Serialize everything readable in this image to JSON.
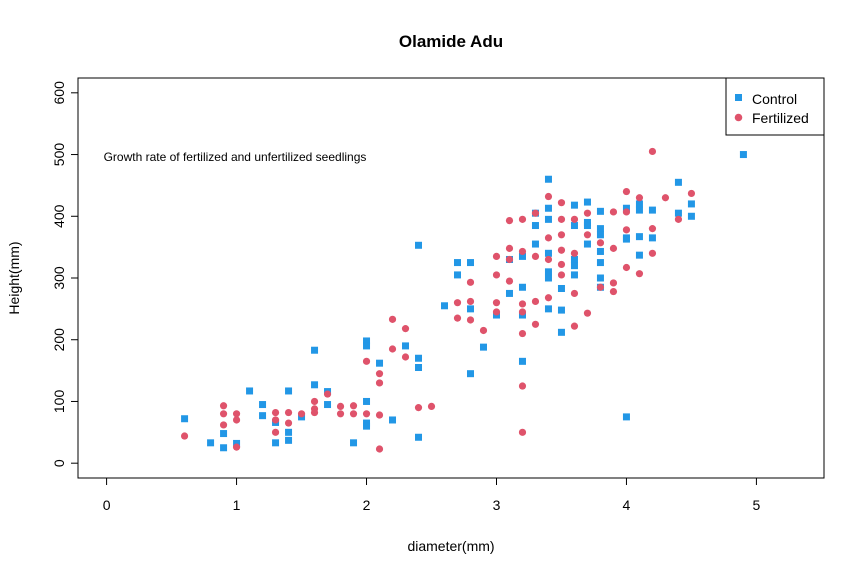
{
  "chart_data": {
    "type": "scatter",
    "title": "Olamide Adu",
    "xlabel": "diameter(mm)",
    "ylabel": "Height(mm)",
    "xlim": [
      -0.22,
      5.52
    ],
    "ylim": [
      -24,
      624
    ],
    "x_ticks": [
      0,
      1,
      2,
      3,
      4,
      5
    ],
    "y_ticks": [
      0,
      100,
      200,
      300,
      400,
      500,
      600
    ],
    "x_tick_labels": [
      "0",
      "1",
      "2",
      "3",
      "4",
      "5"
    ],
    "y_tick_labels": [
      "0",
      "100",
      "200",
      "300",
      "400",
      "500",
      "600"
    ],
    "grid": false,
    "legend_position": "top-right",
    "annotation": {
      "text": "Growth rate of fertilized and unfertilized seedlings",
      "x": 0,
      "y": 496,
      "color": "#DF1D1D"
    },
    "series": [
      {
        "name": "Control",
        "marker": "square",
        "color": "#2297E6",
        "points": [
          [
            0.6,
            72
          ],
          [
            0.8,
            33
          ],
          [
            0.9,
            25
          ],
          [
            0.9,
            48
          ],
          [
            1.0,
            32
          ],
          [
            1.1,
            117
          ],
          [
            1.2,
            95
          ],
          [
            1.2,
            77
          ],
          [
            1.3,
            33
          ],
          [
            1.3,
            66
          ],
          [
            1.4,
            117
          ],
          [
            1.4,
            37
          ],
          [
            1.4,
            50
          ],
          [
            1.5,
            75
          ],
          [
            1.6,
            183
          ],
          [
            1.6,
            127
          ],
          [
            1.7,
            116
          ],
          [
            1.7,
            95
          ],
          [
            1.9,
            33
          ],
          [
            2.0,
            100
          ],
          [
            2.0,
            65
          ],
          [
            2.0,
            60
          ],
          [
            2.0,
            198
          ],
          [
            2.0,
            190
          ],
          [
            2.1,
            162
          ],
          [
            2.2,
            70
          ],
          [
            2.3,
            190
          ],
          [
            2.4,
            353
          ],
          [
            2.4,
            42
          ],
          [
            2.4,
            170
          ],
          [
            2.4,
            155
          ],
          [
            2.6,
            255
          ],
          [
            2.7,
            325
          ],
          [
            2.7,
            305
          ],
          [
            2.8,
            325
          ],
          [
            2.8,
            145
          ],
          [
            2.8,
            250
          ],
          [
            2.9,
            188
          ],
          [
            3.0,
            240
          ],
          [
            3.1,
            275
          ],
          [
            3.1,
            330
          ],
          [
            3.2,
            165
          ],
          [
            3.2,
            240
          ],
          [
            3.2,
            285
          ],
          [
            3.2,
            335
          ],
          [
            3.3,
            385
          ],
          [
            3.3,
            355
          ],
          [
            3.3,
            405
          ],
          [
            3.4,
            460
          ],
          [
            3.4,
            413
          ],
          [
            3.4,
            395
          ],
          [
            3.4,
            340
          ],
          [
            3.4,
            310
          ],
          [
            3.4,
            300
          ],
          [
            3.4,
            250
          ],
          [
            3.5,
            283
          ],
          [
            3.5,
            248
          ],
          [
            3.5,
            212
          ],
          [
            3.6,
            418
          ],
          [
            3.6,
            385
          ],
          [
            3.6,
            330
          ],
          [
            3.6,
            320
          ],
          [
            3.6,
            305
          ],
          [
            3.7,
            423
          ],
          [
            3.7,
            390
          ],
          [
            3.7,
            385
          ],
          [
            3.7,
            355
          ],
          [
            3.8,
            408
          ],
          [
            3.8,
            380
          ],
          [
            3.8,
            370
          ],
          [
            3.8,
            343
          ],
          [
            3.8,
            325
          ],
          [
            3.8,
            300
          ],
          [
            3.8,
            285
          ],
          [
            4.0,
            75
          ],
          [
            4.0,
            413
          ],
          [
            4.0,
            365
          ],
          [
            4.0,
            363
          ],
          [
            4.1,
            420
          ],
          [
            4.1,
            410
          ],
          [
            4.1,
            367
          ],
          [
            4.1,
            337
          ],
          [
            4.2,
            410
          ],
          [
            4.2,
            365
          ],
          [
            4.4,
            455
          ],
          [
            4.4,
            405
          ],
          [
            4.5,
            420
          ],
          [
            4.5,
            400
          ],
          [
            4.9,
            500
          ]
        ]
      },
      {
        "name": "Fertilized",
        "marker": "circle",
        "color": "#DF536B",
        "points": [
          [
            0.6,
            44
          ],
          [
            0.9,
            93
          ],
          [
            0.9,
            80
          ],
          [
            0.9,
            62
          ],
          [
            1.0,
            80
          ],
          [
            1.0,
            70
          ],
          [
            1.0,
            26
          ],
          [
            1.3,
            82
          ],
          [
            1.3,
            70
          ],
          [
            1.3,
            50
          ],
          [
            1.4,
            82
          ],
          [
            1.4,
            65
          ],
          [
            1.5,
            80
          ],
          [
            1.6,
            100
          ],
          [
            1.6,
            88
          ],
          [
            1.6,
            82
          ],
          [
            1.7,
            112
          ],
          [
            1.8,
            92
          ],
          [
            1.8,
            80
          ],
          [
            1.9,
            93
          ],
          [
            1.9,
            80
          ],
          [
            2.0,
            165
          ],
          [
            2.0,
            80
          ],
          [
            2.1,
            145
          ],
          [
            2.1,
            130
          ],
          [
            2.1,
            78
          ],
          [
            2.1,
            23
          ],
          [
            2.2,
            233
          ],
          [
            2.2,
            185
          ],
          [
            2.3,
            218
          ],
          [
            2.3,
            172
          ],
          [
            2.4,
            90
          ],
          [
            2.5,
            92
          ],
          [
            2.7,
            260
          ],
          [
            2.7,
            235
          ],
          [
            2.8,
            293
          ],
          [
            2.8,
            262
          ],
          [
            2.8,
            232
          ],
          [
            2.9,
            215
          ],
          [
            3.0,
            335
          ],
          [
            3.0,
            305
          ],
          [
            3.0,
            260
          ],
          [
            3.0,
            245
          ],
          [
            3.1,
            393
          ],
          [
            3.1,
            348
          ],
          [
            3.1,
            330
          ],
          [
            3.1,
            295
          ],
          [
            3.2,
            395
          ],
          [
            3.2,
            343
          ],
          [
            3.2,
            258
          ],
          [
            3.2,
            245
          ],
          [
            3.2,
            210
          ],
          [
            3.2,
            125
          ],
          [
            3.2,
            50
          ],
          [
            3.3,
            405
          ],
          [
            3.3,
            335
          ],
          [
            3.3,
            262
          ],
          [
            3.3,
            225
          ],
          [
            3.4,
            432
          ],
          [
            3.4,
            365
          ],
          [
            3.4,
            330
          ],
          [
            3.4,
            268
          ],
          [
            3.5,
            422
          ],
          [
            3.5,
            395
          ],
          [
            3.5,
            370
          ],
          [
            3.5,
            345
          ],
          [
            3.5,
            322
          ],
          [
            3.5,
            305
          ],
          [
            3.6,
            395
          ],
          [
            3.6,
            340
          ],
          [
            3.6,
            275
          ],
          [
            3.6,
            222
          ],
          [
            3.7,
            405
          ],
          [
            3.7,
            370
          ],
          [
            3.7,
            243
          ],
          [
            3.8,
            357
          ],
          [
            3.8,
            285
          ],
          [
            3.9,
            407
          ],
          [
            3.9,
            348
          ],
          [
            3.9,
            292
          ],
          [
            3.9,
            278
          ],
          [
            4.0,
            440
          ],
          [
            4.0,
            407
          ],
          [
            4.0,
            378
          ],
          [
            4.0,
            317
          ],
          [
            4.1,
            430
          ],
          [
            4.1,
            307
          ],
          [
            4.2,
            505
          ],
          [
            4.2,
            380
          ],
          [
            4.2,
            340
          ],
          [
            4.3,
            430
          ],
          [
            4.4,
            395
          ],
          [
            4.5,
            437
          ]
        ]
      }
    ]
  }
}
